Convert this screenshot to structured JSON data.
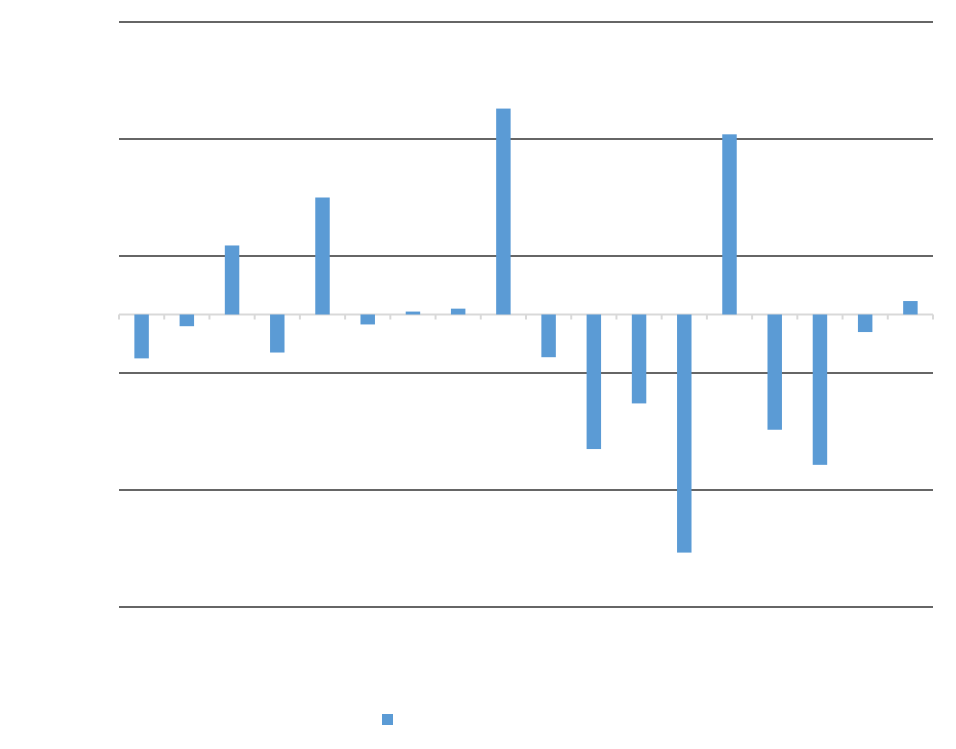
{
  "chart_data": {
    "type": "bar",
    "title": "",
    "xlabel": "",
    "ylabel": "",
    "ylim": [
      -5,
      5
    ],
    "grid": true,
    "legend": "bottom",
    "categories": [
      "",
      "",
      "",
      "",
      "",
      "",
      "",
      "",
      "",
      "",
      "",
      "",
      "",
      "",
      "",
      "",
      "",
      ""
    ],
    "series": [
      {
        "color": "#5b9bd5",
        "values": [
          -0.75,
          -0.2,
          1.18,
          -0.65,
          2.0,
          -0.17,
          0.05,
          0.1,
          3.52,
          -0.73,
          -2.3,
          -1.52,
          -4.07,
          3.08,
          -1.97,
          -2.57,
          -0.3,
          0.23
        ]
      }
    ],
    "gridline_values": [
      -5,
      -3,
      -1,
      1,
      3,
      5
    ],
    "colors": {
      "bar": "#5b9bd5",
      "gridline": "#333333",
      "zero_axis": "#d9d9d9"
    }
  }
}
